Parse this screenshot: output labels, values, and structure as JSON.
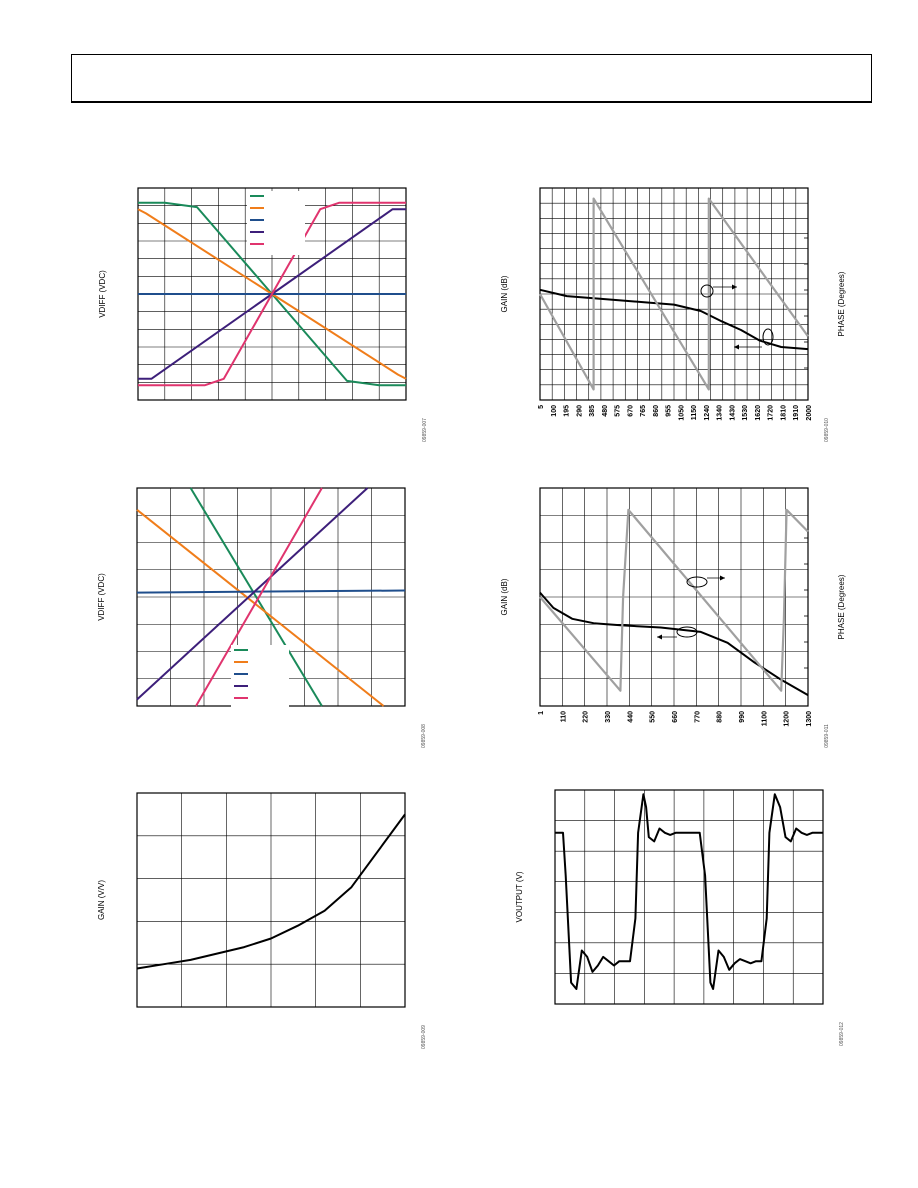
{
  "chart_data": [
    {
      "id": "plot1",
      "type": "line",
      "ylabel": "VDIFF (VDC)",
      "figure_id": "09859-007",
      "legend_colors": [
        "#1a8a5a",
        "#f07d1a",
        "#1f4e8c",
        "#3d1f7a",
        "#e0346e"
      ],
      "series": [
        {
          "color": "#1a8a5a",
          "x": [
            0,
            0.1,
            0.22,
            0.5,
            0.78,
            0.9,
            1
          ],
          "y": [
            0.93,
            0.93,
            0.91,
            0.5,
            0.09,
            0.07,
            0.07
          ]
        },
        {
          "color": "#f07d1a",
          "x": [
            0,
            0.03,
            0.5,
            0.97,
            1
          ],
          "y": [
            0.9,
            0.88,
            0.5,
            0.12,
            0.1
          ]
        },
        {
          "color": "#1f4e8c",
          "x": [
            0,
            1
          ],
          "y": [
            0.5,
            0.5
          ]
        },
        {
          "color": "#3d1f7a",
          "x": [
            0,
            0.05,
            0.5,
            0.95,
            1
          ],
          "y": [
            0.1,
            0.1,
            0.5,
            0.9,
            0.9
          ]
        },
        {
          "color": "#e0346e",
          "x": [
            0,
            0.25,
            0.32,
            0.5,
            0.68,
            0.75,
            1
          ],
          "y": [
            0.07,
            0.07,
            0.1,
            0.5,
            0.9,
            0.93,
            0.93
          ]
        }
      ]
    },
    {
      "id": "plot2",
      "type": "line",
      "ylabel": "VDIFF (VDC)",
      "figure_id": "09859-008",
      "legend_colors": [
        "#1a8a5a",
        "#f07d1a",
        "#1f4e8c",
        "#3d1f7a",
        "#e0346e"
      ],
      "series": [
        {
          "color": "#1a8a5a",
          "x": [
            0.2,
            0.69
          ],
          "y": [
            1,
            0
          ]
        },
        {
          "color": "#f07d1a",
          "x": [
            0,
            0.92
          ],
          "y": [
            0.9,
            0
          ]
        },
        {
          "color": "#1f4e8c",
          "x": [
            0,
            1
          ],
          "y": [
            0.52,
            0.53
          ]
        },
        {
          "color": "#3d1f7a",
          "x": [
            0,
            0.86
          ],
          "y": [
            0.03,
            1
          ]
        },
        {
          "color": "#e0346e",
          "x": [
            0.22,
            0.69
          ],
          "y": [
            0,
            1
          ]
        }
      ]
    },
    {
      "id": "plot3",
      "type": "line",
      "ylabel": "GAIN (V/V)",
      "figure_id": "09859-009",
      "series": [
        {
          "color": "#000000",
          "x": [
            0,
            0.1,
            0.2,
            0.3,
            0.4,
            0.5,
            0.6,
            0.7,
            0.8,
            0.9,
            1
          ],
          "y": [
            0.18,
            0.2,
            0.22,
            0.25,
            0.28,
            0.32,
            0.38,
            0.45,
            0.56,
            0.73,
            0.9
          ]
        }
      ]
    },
    {
      "id": "plot4",
      "type": "line",
      "ylabel": "GAIN (dB)",
      "y2label": "PHASE (Degrees)",
      "figure_id": "09859-010",
      "x_ticks": [
        "5",
        "100",
        "195",
        "290",
        "385",
        "480",
        "575",
        "670",
        "765",
        "860",
        "955",
        "1050",
        "1150",
        "1240",
        "1340",
        "1430",
        "1530",
        "1620",
        "1720",
        "1810",
        "1910",
        "2000"
      ],
      "series": [
        {
          "name": "gain",
          "color": "#000000",
          "x": [
            0,
            0.1,
            0.2,
            0.3,
            0.4,
            0.5,
            0.6,
            0.68,
            0.75,
            0.82,
            0.9,
            1
          ],
          "y": [
            0.52,
            0.49,
            0.48,
            0.47,
            0.46,
            0.45,
            0.42,
            0.37,
            0.33,
            0.28,
            0.25,
            0.24
          ]
        },
        {
          "name": "phase",
          "color": "#a0a0a0",
          "x": [
            0,
            0.2,
            0.2,
            0.63,
            0.63,
            1
          ],
          "y": [
            0.5,
            0.05,
            0.95,
            0.05,
            0.95,
            0.3
          ]
        }
      ]
    },
    {
      "id": "plot5",
      "type": "line",
      "ylabel": "GAIN (dB)",
      "y2label": "PHASE (Degrees)",
      "figure_id": "09859-011",
      "x_ticks": [
        "1",
        "110",
        "220",
        "330",
        "440",
        "550",
        "660",
        "770",
        "880",
        "990",
        "1100",
        "1200",
        "1300"
      ],
      "series": [
        {
          "name": "gain",
          "color": "#000000",
          "x": [
            0,
            0.05,
            0.12,
            0.2,
            0.3,
            0.45,
            0.6,
            0.7,
            0.8,
            0.9,
            1
          ],
          "y": [
            0.52,
            0.45,
            0.4,
            0.38,
            0.37,
            0.36,
            0.34,
            0.29,
            0.2,
            0.12,
            0.05
          ]
        },
        {
          "name": "phase",
          "color": "#a0a0a0",
          "x": [
            0,
            0.3,
            0.31,
            0.33,
            0.9,
            0.91,
            0.92,
            1
          ],
          "y": [
            0.5,
            0.07,
            0.5,
            0.9,
            0.07,
            0.4,
            0.9,
            0.8
          ]
        }
      ]
    },
    {
      "id": "plot6",
      "type": "line",
      "ylabel": "VOUTPUT (V)",
      "figure_id": "09859-012",
      "series": [
        {
          "color": "#000000",
          "x": [
            0,
            0.03,
            0.04,
            0.06,
            0.08,
            0.1,
            0.12,
            0.14,
            0.16,
            0.18,
            0.2,
            0.22,
            0.24,
            0.26,
            0.28,
            0.3,
            0.31,
            0.33,
            0.34,
            0.35,
            0.37,
            0.39,
            0.41,
            0.43,
            0.45,
            0.47,
            0.49,
            0.51,
            0.54,
            0.56,
            0.58,
            0.59,
            0.61,
            0.63,
            0.65,
            0.67,
            0.69,
            0.71,
            0.73,
            0.75,
            0.77,
            0.79,
            0.8,
            0.82,
            0.84,
            0.86,
            0.88,
            0.9,
            0.92,
            0.94,
            0.96,
            0.98,
            1
          ],
          "y": [
            0.8,
            0.8,
            0.6,
            0.1,
            0.07,
            0.25,
            0.22,
            0.15,
            0.18,
            0.22,
            0.2,
            0.18,
            0.2,
            0.2,
            0.2,
            0.4,
            0.8,
            0.98,
            0.92,
            0.78,
            0.76,
            0.82,
            0.8,
            0.79,
            0.8,
            0.8,
            0.8,
            0.8,
            0.8,
            0.6,
            0.1,
            0.07,
            0.25,
            0.22,
            0.16,
            0.19,
            0.21,
            0.2,
            0.19,
            0.2,
            0.2,
            0.4,
            0.8,
            0.98,
            0.92,
            0.78,
            0.76,
            0.82,
            0.8,
            0.79,
            0.8,
            0.8,
            0.8
          ]
        }
      ]
    }
  ]
}
